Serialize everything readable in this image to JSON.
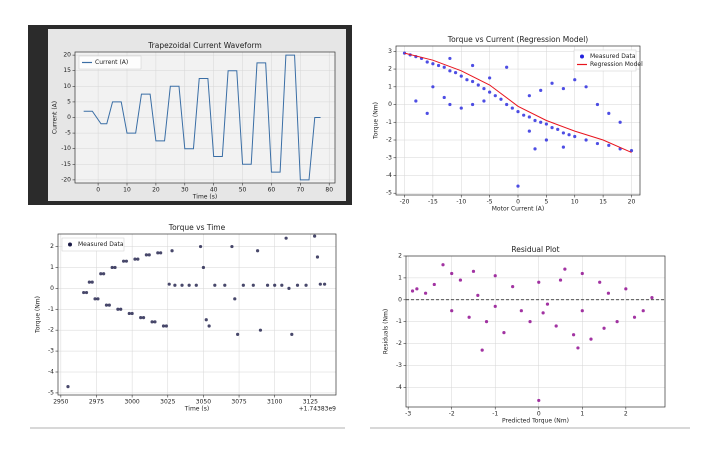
{
  "chart_data": [
    {
      "type": "line",
      "title": "Trapezoidal Current Waveform",
      "x_label": "Time (s)",
      "y_label": "Current (A)",
      "xlim": [
        -8,
        82
      ],
      "xticks": [
        0,
        10,
        20,
        30,
        40,
        50,
        60,
        70,
        80
      ],
      "ylim": [
        -21,
        21
      ],
      "yticks": [
        -20,
        -15,
        -10,
        -5,
        0,
        5,
        10,
        15,
        20
      ],
      "grid": true,
      "legend": "upper left",
      "series": [
        {
          "name": "Current (A)",
          "color": "#3a6ea5",
          "x": [
            -5,
            -2,
            1,
            3,
            5,
            8,
            10,
            13,
            15,
            18,
            20,
            23,
            25,
            28,
            30,
            33,
            35,
            38,
            40,
            43,
            45,
            48,
            50,
            53,
            55,
            58,
            60,
            63,
            65,
            68,
            70,
            73,
            75,
            77
          ],
          "values": [
            2,
            2,
            -2,
            -2,
            5,
            5,
            -5,
            -5,
            7.5,
            7.5,
            -7.5,
            -7.5,
            10,
            10,
            -10,
            -10,
            12.5,
            12.5,
            -12.5,
            -12.5,
            15,
            15,
            -15,
            -15,
            17.5,
            17.5,
            -17.5,
            -17.5,
            20,
            20,
            -20,
            -20,
            0,
            0
          ]
        }
      ]
    },
    {
      "type": "scatter",
      "title": "Torque vs Current (Regression Model)",
      "x_label": "Motor Current (A)",
      "y_label": "Torque (Nm)",
      "xlim": [
        -21.5,
        21.5
      ],
      "xticks": [
        -20,
        -15,
        -10,
        -5,
        0,
        5,
        10,
        15,
        20
      ],
      "ylim": [
        -5.1,
        3.3
      ],
      "yticks": [
        -5,
        -4,
        -3,
        -2,
        -1,
        0,
        1,
        2,
        3
      ],
      "grid": true,
      "legend": "upper right",
      "series": [
        {
          "name": "Measured Data",
          "color": "#2222dd",
          "type": "scatter",
          "x": [
            -20,
            -19,
            -18,
            -17,
            -16,
            -15,
            -14,
            -13,
            -12,
            -11,
            -10,
            -9,
            -8,
            -7,
            -6,
            -5,
            -4,
            -3,
            -2,
            -1,
            0,
            1,
            2,
            3,
            4,
            5,
            6,
            7,
            8,
            9,
            10,
            12,
            14,
            16,
            18,
            20,
            -18,
            -16,
            -15,
            -13,
            -12,
            -10,
            -8,
            -6,
            -5,
            -12,
            -8,
            -2,
            0,
            2,
            4,
            6,
            8,
            10,
            12,
            14,
            16,
            18,
            2,
            5,
            8,
            3
          ],
          "values": [
            2.9,
            2.8,
            2.7,
            2.6,
            2.4,
            2.3,
            2.2,
            2.1,
            1.9,
            1.8,
            1.6,
            1.4,
            1.3,
            1.1,
            0.9,
            0.7,
            0.5,
            0.3,
            0.0,
            -0.2,
            -0.4,
            -0.6,
            -0.7,
            -0.9,
            -1.0,
            -1.1,
            -1.3,
            -1.4,
            -1.6,
            -1.7,
            -1.8,
            -2.0,
            -2.2,
            -2.3,
            -2.5,
            -2.6,
            0.2,
            -0.5,
            1.0,
            0.4,
            0.0,
            -0.2,
            0.0,
            0.2,
            1.5,
            2.6,
            2.2,
            2.1,
            -4.6,
            0.5,
            0.8,
            1.2,
            0.9,
            1.4,
            1.0,
            0.0,
            -0.5,
            -1.0,
            -1.5,
            -2.0,
            -2.4,
            -2.5
          ]
        },
        {
          "name": "Regression Model",
          "color": "#e8141e",
          "type": "line",
          "x": [
            -20,
            -15,
            -10,
            -5,
            0,
            5,
            10,
            15,
            20
          ],
          "values": [
            2.9,
            2.5,
            1.9,
            1.1,
            -0.1,
            -0.9,
            -1.5,
            -2.0,
            -2.7
          ]
        }
      ]
    },
    {
      "type": "scatter",
      "title": "Torque vs Time",
      "x_label": "Time (s)",
      "y_label": "Torque (Nm)",
      "x_offset_label": "+1.74383e9",
      "xlim": [
        2948,
        3143
      ],
      "xticks": [
        2950,
        2975,
        3000,
        3025,
        3050,
        3075,
        3100,
        3125
      ],
      "ylim": [
        -5.1,
        2.6
      ],
      "yticks": [
        -5,
        -4,
        -3,
        -2,
        -1,
        0,
        1,
        2
      ],
      "grid": true,
      "legend": "upper left",
      "series": [
        {
          "name": "Measured Data",
          "color": "#1a1a46",
          "type": "scatter",
          "x": [
            2955,
            2966,
            2968,
            2970,
            2972,
            2974,
            2976,
            2978,
            2980,
            2982,
            2984,
            2986,
            2988,
            2990,
            2992,
            2994,
            2996,
            2998,
            3000,
            3002,
            3004,
            3006,
            3008,
            3010,
            3012,
            3014,
            3016,
            3018,
            3020,
            3022,
            3024,
            3026,
            3028,
            3030,
            3035,
            3040,
            3045,
            3048,
            3050,
            3052,
            3054,
            3058,
            3065,
            3070,
            3072,
            3074,
            3078,
            3085,
            3088,
            3090,
            3095,
            3100,
            3105,
            3108,
            3110,
            3112,
            3116,
            3122,
            3128,
            3130,
            3132,
            3135
          ],
          "values": [
            -4.7,
            -0.2,
            -0.2,
            0.3,
            0.3,
            -0.5,
            -0.5,
            0.7,
            0.7,
            -0.8,
            -0.8,
            1.0,
            1.0,
            -1.0,
            -1.0,
            1.3,
            1.3,
            -1.2,
            -1.2,
            1.4,
            1.4,
            -1.4,
            -1.4,
            1.6,
            1.6,
            -1.6,
            -1.6,
            1.7,
            1.7,
            -1.8,
            -1.8,
            0.2,
            1.8,
            0.15,
            0.15,
            0.15,
            0.15,
            2.0,
            1.0,
            -1.5,
            -1.8,
            0.15,
            0.15,
            2.0,
            -0.5,
            -2.2,
            0.15,
            0.15,
            1.8,
            -2.0,
            0.15,
            0.15,
            0.15,
            2.4,
            0.0,
            -2.2,
            0.15,
            0.15,
            2.5,
            1.5,
            0.2,
            0.2
          ]
        }
      ]
    },
    {
      "type": "scatter",
      "title": "Residual Plot",
      "x_label": "Predicted Torque (Nm)",
      "y_label": "Residuals (Nm)",
      "xlim": [
        -3.05,
        2.9
      ],
      "xticks": [
        -3,
        -2,
        -1,
        0,
        1,
        2
      ],
      "ylim": [
        -4.9,
        2.0
      ],
      "yticks": [
        -4,
        -3,
        -2,
        -1,
        0,
        1,
        2
      ],
      "grid": true,
      "hline": 0,
      "series": [
        {
          "color": "#8b008b",
          "type": "scatter",
          "x": [
            -2.8,
            -2.6,
            -2.4,
            -2.2,
            -2,
            -2,
            -1.8,
            -1.6,
            -1.5,
            -1.4,
            -1.2,
            -1,
            -1,
            -0.8,
            -0.6,
            -0.4,
            -0.2,
            0,
            0,
            0.2,
            0.4,
            0.5,
            0.6,
            0.8,
            1,
            1,
            1.2,
            1.4,
            1.5,
            1.6,
            1.8,
            2,
            2.2,
            2.4,
            2.6,
            -2.9,
            0.1,
            -1.3,
            0.9
          ],
          "values": [
            0.5,
            0.3,
            0.7,
            1.6,
            1.2,
            -0.5,
            0.9,
            -0.8,
            1.3,
            0.2,
            -1.0,
            1.1,
            -0.3,
            -1.5,
            0.6,
            -0.5,
            -1.0,
            0.8,
            -4.6,
            -0.2,
            -1.2,
            0.9,
            1.4,
            -1.6,
            1.2,
            -0.5,
            -1.8,
            0.8,
            -1.3,
            0.3,
            -1.0,
            0.5,
            -0.8,
            -0.5,
            0.1,
            0.4,
            -0.6,
            -2.3,
            -2.2
          ]
        }
      ]
    }
  ]
}
